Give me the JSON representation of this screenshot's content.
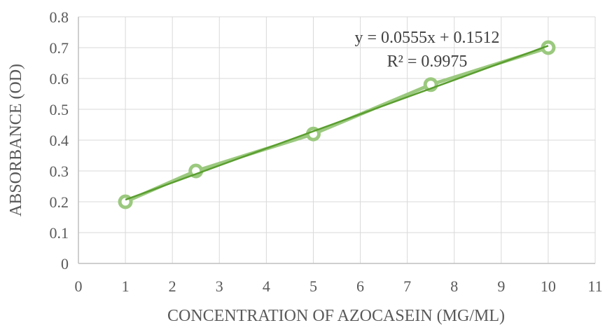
{
  "chart_data": {
    "type": "scatter",
    "title": "",
    "xlabel": "CONCENTRATION OF AZOCASEIN (MG/ML)",
    "ylabel": "ABSORBANCE (OD)",
    "xlim": [
      0,
      11
    ],
    "ylim": [
      0,
      0.8
    ],
    "x_ticks": [
      0,
      1,
      2,
      3,
      4,
      5,
      6,
      7,
      8,
      9,
      10,
      11
    ],
    "y_ticks": [
      "0",
      "0.1",
      "0.2",
      "0.3",
      "0.4",
      "0.5",
      "0.6",
      "0.7",
      "0.8"
    ],
    "grid": true,
    "series": [
      {
        "x": [
          1,
          2.5,
          5,
          7.5,
          10
        ],
        "y": [
          0.2,
          0.3,
          0.42,
          0.58,
          0.7
        ],
        "color": "#9bc97f",
        "marker": "circle-open"
      }
    ],
    "trendline": {
      "slope": 0.0555,
      "intercept": 0.1512,
      "color": "#5a9e2f",
      "equation": "y = 0.0555x + 0.1512",
      "r_squared": "R² = 0.9975"
    }
  }
}
